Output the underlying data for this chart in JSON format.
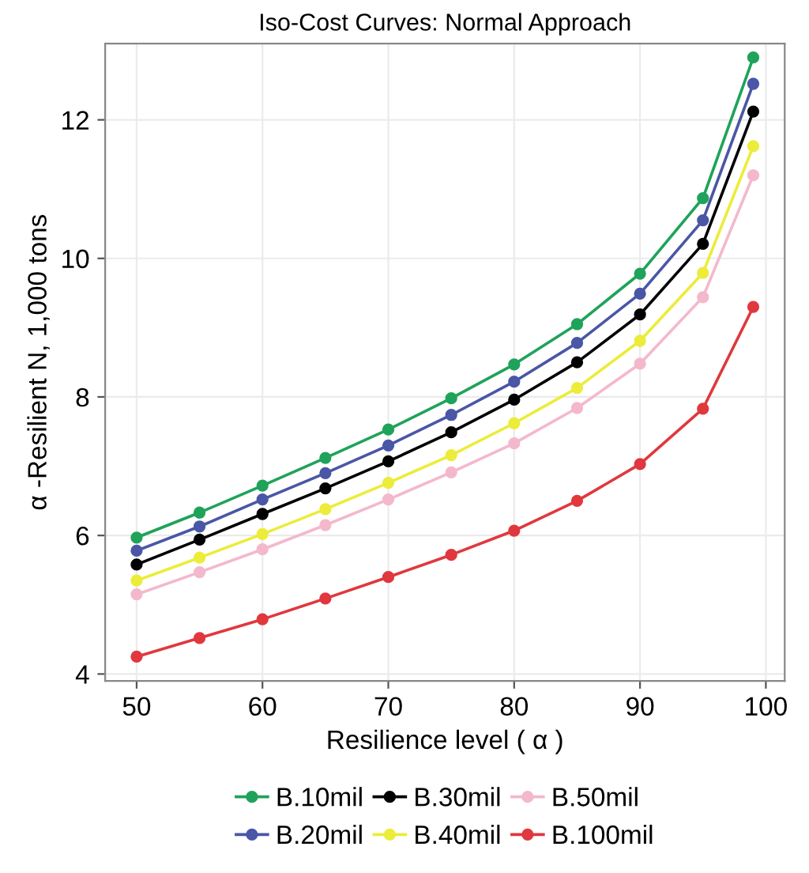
{
  "chart_data": {
    "type": "line",
    "title": "Iso-Cost Curves: Normal Approach",
    "xlabel": "Resilience level ( α )",
    "ylabel": "α -Resilient N, 1,000 tons",
    "x": [
      50,
      55,
      60,
      65,
      70,
      75,
      80,
      85,
      90,
      95,
      99
    ],
    "series": [
      {
        "name": "B.10mil",
        "color": "#1fa35a",
        "values": [
          5.97,
          6.33,
          6.72,
          7.12,
          7.53,
          7.98,
          8.47,
          9.05,
          9.78,
          10.87,
          12.9
        ]
      },
      {
        "name": "B.20mil",
        "color": "#4a56a6",
        "values": [
          5.78,
          6.13,
          6.52,
          6.9,
          7.3,
          7.74,
          8.22,
          8.78,
          9.49,
          10.55,
          12.52
        ]
      },
      {
        "name": "B.30mil",
        "color": "#000000",
        "values": [
          5.58,
          5.94,
          6.31,
          6.68,
          7.07,
          7.49,
          7.96,
          8.5,
          9.19,
          10.21,
          12.12
        ]
      },
      {
        "name": "B.40mil",
        "color": "#ecec3a",
        "values": [
          5.35,
          5.68,
          6.02,
          6.38,
          6.76,
          7.16,
          7.62,
          8.13,
          8.81,
          9.79,
          11.62
        ]
      },
      {
        "name": "B.50mil",
        "color": "#f4b8cc",
        "values": [
          5.15,
          5.47,
          5.8,
          6.15,
          6.52,
          6.91,
          7.33,
          7.84,
          8.48,
          9.44,
          11.2
        ]
      },
      {
        "name": "B.100mil",
        "color": "#e0383e",
        "values": [
          4.25,
          4.52,
          4.79,
          5.09,
          5.4,
          5.72,
          6.07,
          6.5,
          7.03,
          7.83,
          9.3
        ]
      }
    ],
    "xlim": [
      47.5,
      101.5
    ],
    "ylim": [
      3.9,
      13.1
    ],
    "xticks": [
      50,
      60,
      70,
      80,
      90,
      100
    ],
    "yticks": [
      4,
      6,
      8,
      10,
      12
    ],
    "grid": true,
    "legend": "bottom",
    "marker": "circle",
    "line_style": "solid"
  }
}
